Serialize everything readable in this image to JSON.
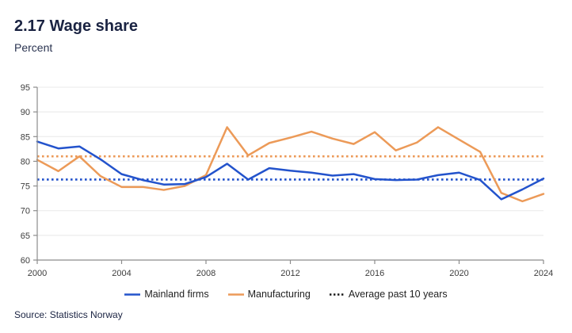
{
  "header": {
    "title": "2.17 Wage share",
    "subtitle": "Percent"
  },
  "source": "Source: Statistics Norway",
  "colors": {
    "mainland": "#2353CC",
    "manufacturing": "#EC9A58",
    "average_marker": "#1A1A1A",
    "grid": "#E8E8E8",
    "axis": "#8C8C8C",
    "tick_text": "#3D3D3D"
  },
  "chart_data": {
    "type": "line",
    "title": "2.17 Wage share",
    "ylabel": "Percent",
    "ylim": [
      60,
      95
    ],
    "y_ticks": [
      60,
      65,
      70,
      75,
      80,
      85,
      90,
      95
    ],
    "x": [
      2000,
      2001,
      2002,
      2003,
      2004,
      2005,
      2006,
      2007,
      2008,
      2009,
      2010,
      2011,
      2012,
      2013,
      2014,
      2015,
      2016,
      2017,
      2018,
      2019,
      2020,
      2021,
      2022,
      2023,
      2024
    ],
    "x_tick_labels": [
      "2000",
      "2004",
      "2008",
      "2012",
      "2016",
      "2020",
      "2024"
    ],
    "grid": "horizontal",
    "legend_position": "bottom",
    "series": [
      {
        "name": "Mainland firms",
        "color_key": "mainland",
        "style": "solid",
        "values": [
          84.0,
          82.6,
          83.0,
          80.4,
          77.4,
          76.2,
          75.3,
          75.4,
          76.8,
          79.5,
          76.3,
          78.6,
          78.1,
          77.7,
          77.1,
          77.4,
          76.4,
          76.2,
          76.3,
          77.2,
          77.7,
          76.2,
          72.3,
          74.3,
          76.5
        ]
      },
      {
        "name": "Manufacturing",
        "color_key": "manufacturing",
        "style": "solid",
        "values": [
          80.3,
          78.0,
          81.0,
          77.0,
          74.8,
          74.8,
          74.2,
          75.0,
          77.2,
          86.9,
          81.2,
          83.7,
          84.8,
          86.0,
          84.6,
          83.5,
          85.9,
          82.2,
          83.8,
          86.9,
          84.4,
          81.9,
          73.6,
          71.9,
          73.4
        ]
      }
    ],
    "averages": [
      {
        "name": "average-mainland-firms-line",
        "series": "Mainland firms",
        "value": 76.3,
        "color_key": "mainland",
        "style": "dotted"
      },
      {
        "name": "average-manufacturing-line",
        "series": "Manufacturing",
        "value": 81.0,
        "color_key": "manufacturing",
        "style": "dotted"
      }
    ],
    "legend": [
      {
        "label": "Mainland firms",
        "marker": "solid",
        "color_key": "mainland"
      },
      {
        "label": "Manufacturing",
        "marker": "solid",
        "color_key": "manufacturing"
      },
      {
        "label": "Average past 10 years",
        "marker": "dotted",
        "color_key": "average_marker"
      }
    ]
  }
}
